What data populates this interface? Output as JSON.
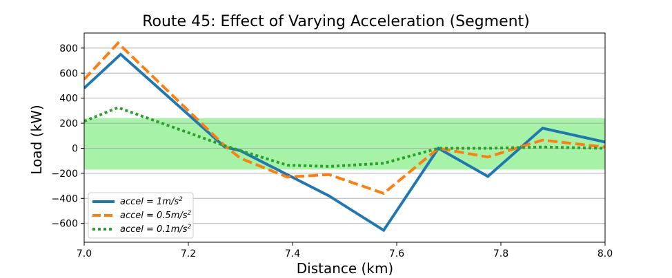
{
  "chart_data": {
    "type": "line",
    "title": "Route 45: Effect of Varying Acceleration (Segment)",
    "xlabel": "Distance (km)",
    "ylabel": "Load (kW)",
    "xlim": [
      7.0,
      8.0
    ],
    "ylim": [
      -750,
      920
    ],
    "xticks": [
      7.0,
      7.2,
      7.4,
      7.6,
      7.8,
      8.0
    ],
    "xtick_labels": [
      "7.0",
      "7.2",
      "7.4",
      "7.6",
      "7.8",
      "8.0"
    ],
    "yticks": [
      -600,
      -400,
      -200,
      0,
      200,
      400,
      600,
      800
    ],
    "ytick_labels": [
      "−600",
      "−400",
      "−200",
      "0",
      "200",
      "400",
      "600",
      "800"
    ],
    "grid": "horizontal",
    "legend_position": "lower-left",
    "band": {
      "y_low": -170,
      "y_high": 240,
      "color": "#a6f2a6"
    },
    "series": [
      {
        "name": "accel = 1m/s²",
        "legend_main": "accel = 1m/s",
        "legend_sup": "2",
        "color": "#1f77b4",
        "style": "solid",
        "x": [
          7.0,
          7.07,
          7.27,
          7.3,
          7.47,
          7.575,
          7.68,
          7.775,
          7.88,
          8.0
        ],
        "y": [
          480,
          750,
          10,
          -20,
          -380,
          -655,
          0,
          -225,
          160,
          50
        ]
      },
      {
        "name": "accel = 0.5m/s²",
        "legend_main": "accel = 0.5m/s",
        "legend_sup": "2",
        "color": "#ff7f0e",
        "style": "dashed",
        "x": [
          7.0,
          7.065,
          7.27,
          7.3,
          7.39,
          7.47,
          7.575,
          7.68,
          7.775,
          7.88,
          8.0
        ],
        "y": [
          550,
          840,
          20,
          -80,
          -230,
          -210,
          -360,
          0,
          -70,
          65,
          10
        ]
      },
      {
        "name": "accel = 0.1m/s²",
        "legend_main": "accel = 0.1m/s",
        "legend_sup": "2",
        "color": "#2ca02c",
        "style": "dotted",
        "x": [
          7.0,
          7.065,
          7.27,
          7.39,
          7.47,
          7.575,
          7.68,
          7.775,
          7.88,
          8.0
        ],
        "y": [
          215,
          325,
          20,
          -135,
          -145,
          -120,
          0,
          0,
          10,
          0
        ]
      }
    ]
  }
}
